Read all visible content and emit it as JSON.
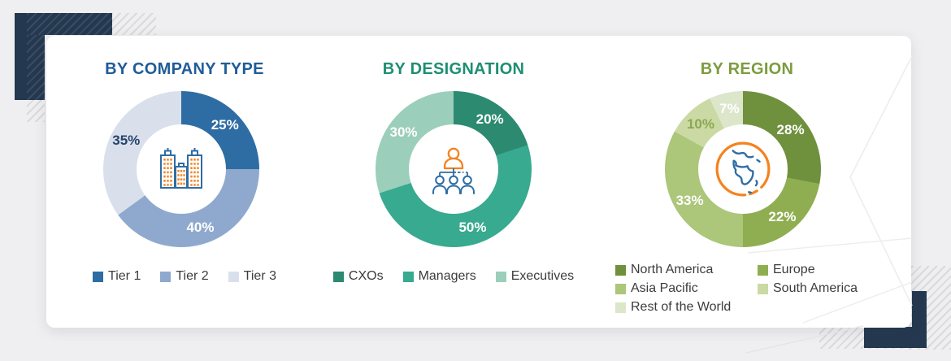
{
  "style": {
    "page_bg": "#efeff1",
    "card_bg": "#ffffff",
    "navy": "#24384f",
    "hatch": "#dadada",
    "legend_text": "#3c3c3c",
    "icon_orange": "#f5821f",
    "icon_blue": "#2e6da4"
  },
  "chart_data": [
    {
      "type": "donut",
      "title": "BY COMPANY TYPE",
      "title_color": "#1f5c99",
      "center_icon": "buildings-icon",
      "legend_position": "bottom-row",
      "segments": [
        {
          "label": "Tier 1",
          "value": 25,
          "display": "25%",
          "color": "#2e6da4",
          "value_label_color": "#ffffff"
        },
        {
          "label": "Tier 2",
          "value": 40,
          "display": "40%",
          "color": "#8fa9ce",
          "value_label_color": "#ffffff"
        },
        {
          "label": "Tier 3",
          "value": 35,
          "display": "35%",
          "color": "#d9e0ec",
          "value_label_color": "#26446b"
        }
      ]
    },
    {
      "type": "donut",
      "title": "BY DESIGNATION",
      "title_color": "#1e8e73",
      "center_icon": "org-chart-icon",
      "legend_position": "bottom-row",
      "segments": [
        {
          "label": "CXOs",
          "value": 20,
          "display": "20%",
          "color": "#2c8a70",
          "value_label_color": "#ffffff"
        },
        {
          "label": "Managers",
          "value": 50,
          "display": "50%",
          "color": "#37aa8f",
          "value_label_color": "#ffffff"
        },
        {
          "label": "Executives",
          "value": 30,
          "display": "30%",
          "color": "#9bcfbb",
          "value_label_color": "#ffffff"
        }
      ]
    },
    {
      "type": "donut",
      "title": "BY REGION",
      "title_color": "#7c9c3e",
      "center_icon": "globe-icon",
      "legend_position": "bottom-grid",
      "segments": [
        {
          "label": "North America",
          "value": 28,
          "display": "28%",
          "color": "#6f913d",
          "value_label_color": "#ffffff"
        },
        {
          "label": "Europe",
          "value": 22,
          "display": "22%",
          "color": "#8fae51",
          "value_label_color": "#ffffff"
        },
        {
          "label": "Asia Pacific",
          "value": 33,
          "display": "33%",
          "color": "#acc67a",
          "value_label_color": "#ffffff"
        },
        {
          "label": "South America",
          "value": 10,
          "display": "10%",
          "color": "#cbd9a5",
          "value_label_color": "#8ca750"
        },
        {
          "label": "Rest of the World",
          "value": 7,
          "display": "7%",
          "color": "#dce6ca",
          "value_label_color": "#ffffff"
        }
      ]
    }
  ]
}
